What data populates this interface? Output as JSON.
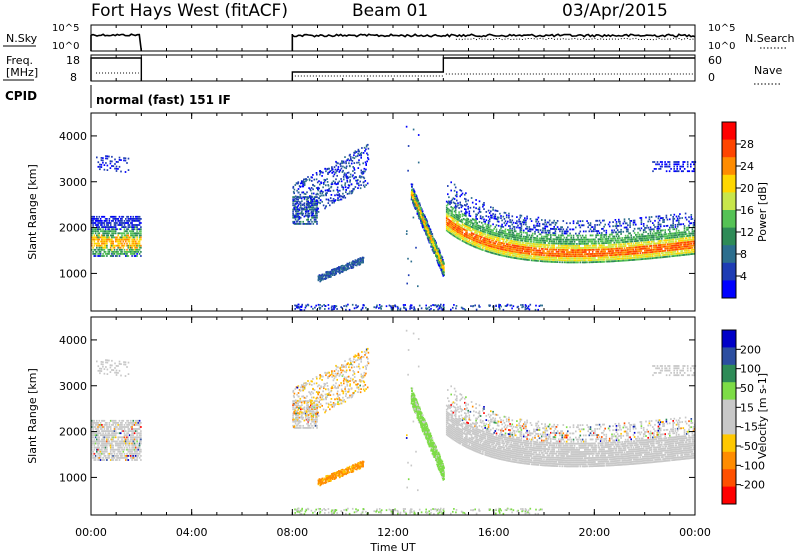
{
  "header": {
    "station": "Fort Hays West (fitACF)",
    "beam": "Beam 01",
    "date": "03/Apr/2015"
  },
  "top_panels": {
    "nsky_label": "N.Sky",
    "nsky_ticks": [
      "10^5",
      "10^0"
    ],
    "nsearch_label": "N.Search",
    "nsearch_ticks": [
      "10^5",
      "10^0"
    ],
    "freq_label_1": "Freq.",
    "freq_label_2": "[MHz]",
    "freq_ticks": [
      "18",
      "8"
    ],
    "nave_label": "Nave",
    "nave_ticks": [
      "60",
      "0"
    ],
    "cpid_label": "CPID",
    "cpid_text": "normal (fast) 151 IF"
  },
  "colors": {
    "power_scale": [
      "#0000ff",
      "#1e3cb4",
      "#2c6e8e",
      "#2e8b57",
      "#55c255",
      "#c8e64b",
      "#ffd700",
      "#ff8c00",
      "#ff4500",
      "#ff0000"
    ],
    "velocity_scale": [
      "#ff0000",
      "#ff5000",
      "#ff8c00",
      "#ffc800",
      "#c8c8c8",
      "#c8c8c8",
      "#7ddc46",
      "#2e8b57",
      "#2c4ea0",
      "#0000c8"
    ]
  },
  "chart_data": [
    {
      "type": "heatmap",
      "panel": "power",
      "xlabel": "Time UT",
      "ylabel": "Slant Range [km]",
      "x_ticks": [
        "00:00",
        "04:00",
        "08:00",
        "12:00",
        "16:00",
        "20:00",
        "00:00"
      ],
      "y_ticks": [
        "1000",
        "2000",
        "3000",
        "4000"
      ],
      "xlim": [
        0,
        24
      ],
      "ylim": [
        180,
        4500
      ],
      "colorbar_label": "Power [dB]",
      "colorbar_ticks": [
        "4",
        "8",
        "12",
        "16",
        "20",
        "24",
        "28"
      ],
      "clim": [
        0,
        30
      ]
    },
    {
      "type": "heatmap",
      "panel": "velocity",
      "xlabel": "Time UT",
      "ylabel": "Slant Range [km]",
      "x_ticks": [
        "00:00",
        "04:00",
        "08:00",
        "12:00",
        "16:00",
        "20:00",
        "00:00"
      ],
      "y_ticks": [
        "1000",
        "2000",
        "3000",
        "4000"
      ],
      "xlim": [
        0,
        24
      ],
      "ylim": [
        180,
        4500
      ],
      "colorbar_label": "Velocity [m s-1]",
      "colorbar_ticks": [
        "200",
        "100",
        "50",
        "15",
        "-15",
        "-50",
        "-100",
        "-200"
      ],
      "clim": [
        -250,
        250
      ]
    }
  ]
}
